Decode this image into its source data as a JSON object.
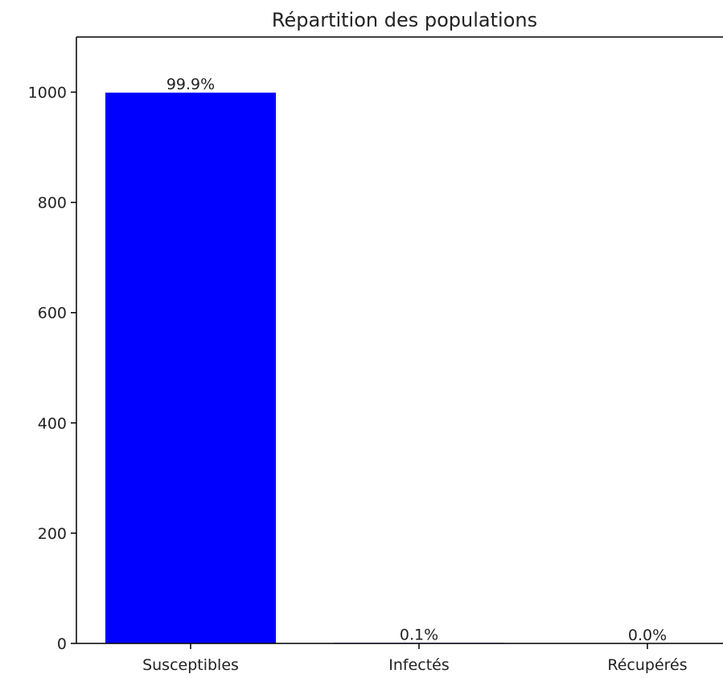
{
  "chart_data": {
    "type": "bar",
    "title": "Répartition des populations",
    "xlabel": "",
    "ylabel": "",
    "categories": [
      "Susceptibles",
      "Infectés",
      "Récupérés"
    ],
    "values": [
      999,
      1,
      0
    ],
    "bar_labels": [
      "99.9%",
      "0.1%",
      "0.0%"
    ],
    "ylim": [
      0,
      1100
    ],
    "yticks": [
      0,
      200,
      400,
      600,
      800,
      1000
    ],
    "bar_color": "#0000ff",
    "grid": false,
    "legend": "none"
  }
}
